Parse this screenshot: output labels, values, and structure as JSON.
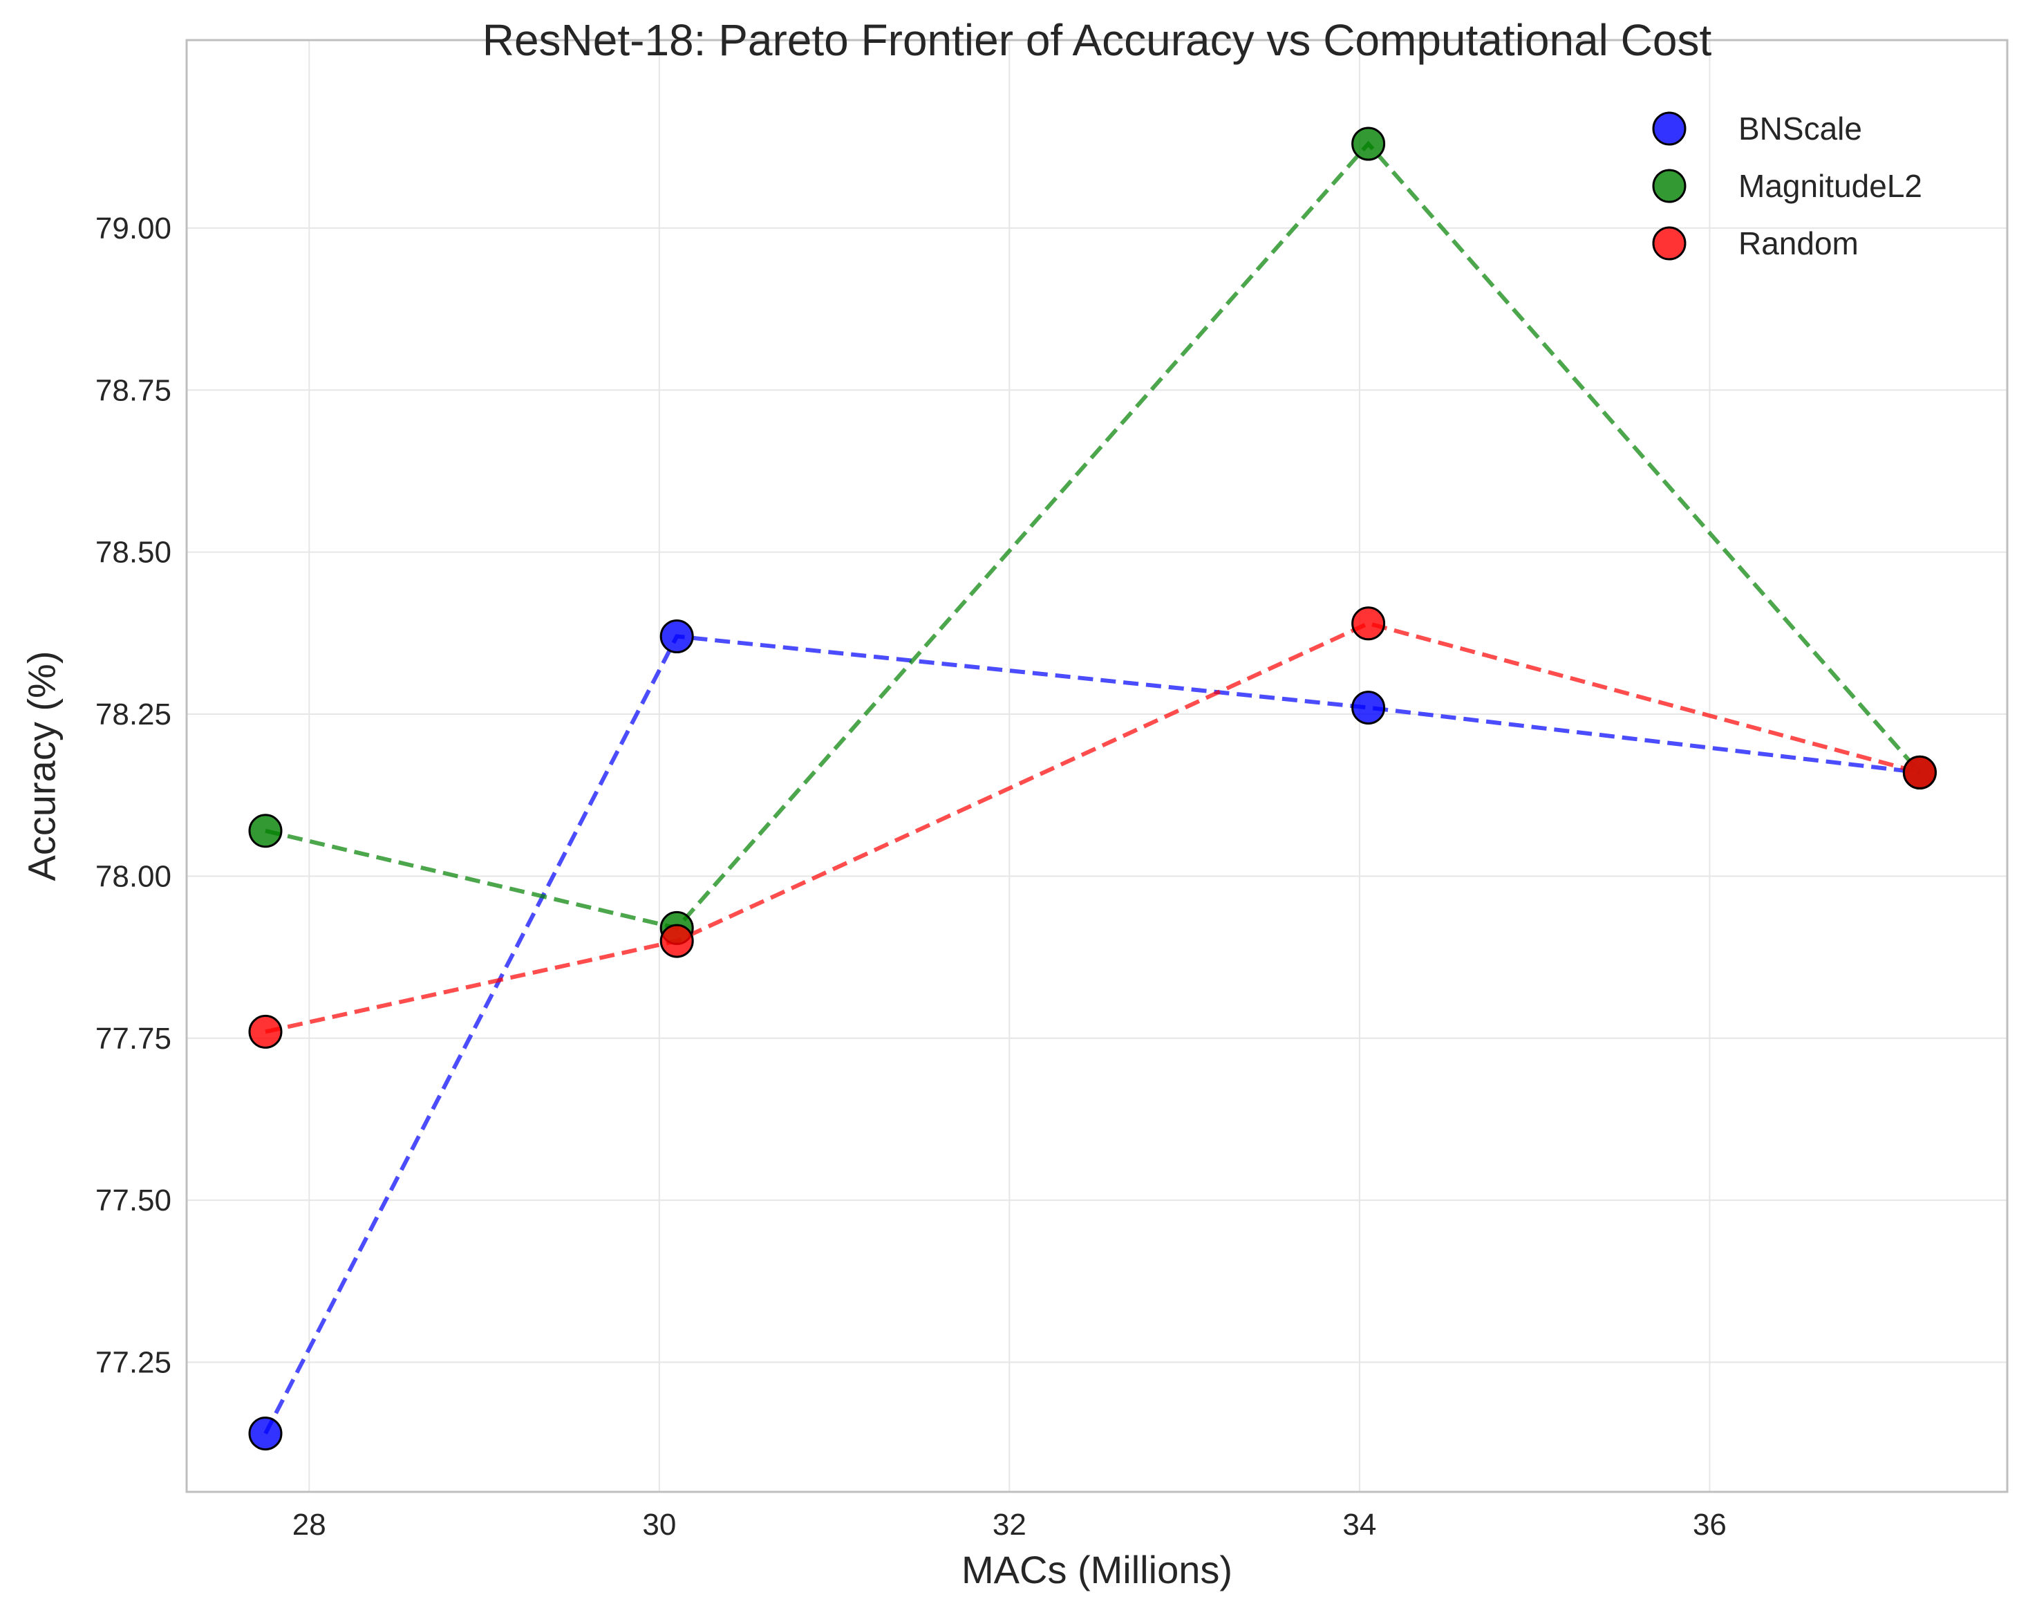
{
  "chart_data": {
    "type": "line",
    "title": "ResNet-18: Pareto Frontier of Accuracy vs Computational Cost",
    "xlabel": "MACs (Millions)",
    "ylabel": "Accuracy (%)",
    "xlim": [
      27.3,
      37.7
    ],
    "ylim": [
      77.05,
      79.29
    ],
    "xticks": [
      28,
      30,
      32,
      34,
      36
    ],
    "xtick_labels": [
      "28",
      "30",
      "32",
      "34",
      "36"
    ],
    "yticks": [
      77.25,
      77.5,
      77.75,
      78.0,
      78.25,
      78.5,
      78.75,
      79.0
    ],
    "ytick_labels": [
      "77.25",
      "77.50",
      "77.75",
      "78.00",
      "78.25",
      "78.50",
      "78.75",
      "79.00"
    ],
    "grid": true,
    "legend_position": "top-right",
    "series": [
      {
        "name": "BNScale",
        "color": "#0000ff",
        "line_style": "dashed",
        "marker": "circle",
        "x": [
          27.75,
          30.1,
          34.05,
          37.2
        ],
        "y": [
          77.14,
          78.37,
          78.26,
          78.16
        ]
      },
      {
        "name": "MagnitudeL2",
        "color": "#008000",
        "line_style": "dashed",
        "marker": "circle",
        "x": [
          27.75,
          30.1,
          34.05,
          37.2
        ],
        "y": [
          78.07,
          77.92,
          79.13,
          78.16
        ]
      },
      {
        "name": "Random",
        "color": "#ff0000",
        "line_style": "dashed",
        "marker": "circle",
        "x": [
          27.75,
          30.1,
          34.05,
          37.2
        ],
        "y": [
          77.76,
          77.9,
          78.39,
          78.16
        ]
      }
    ]
  }
}
